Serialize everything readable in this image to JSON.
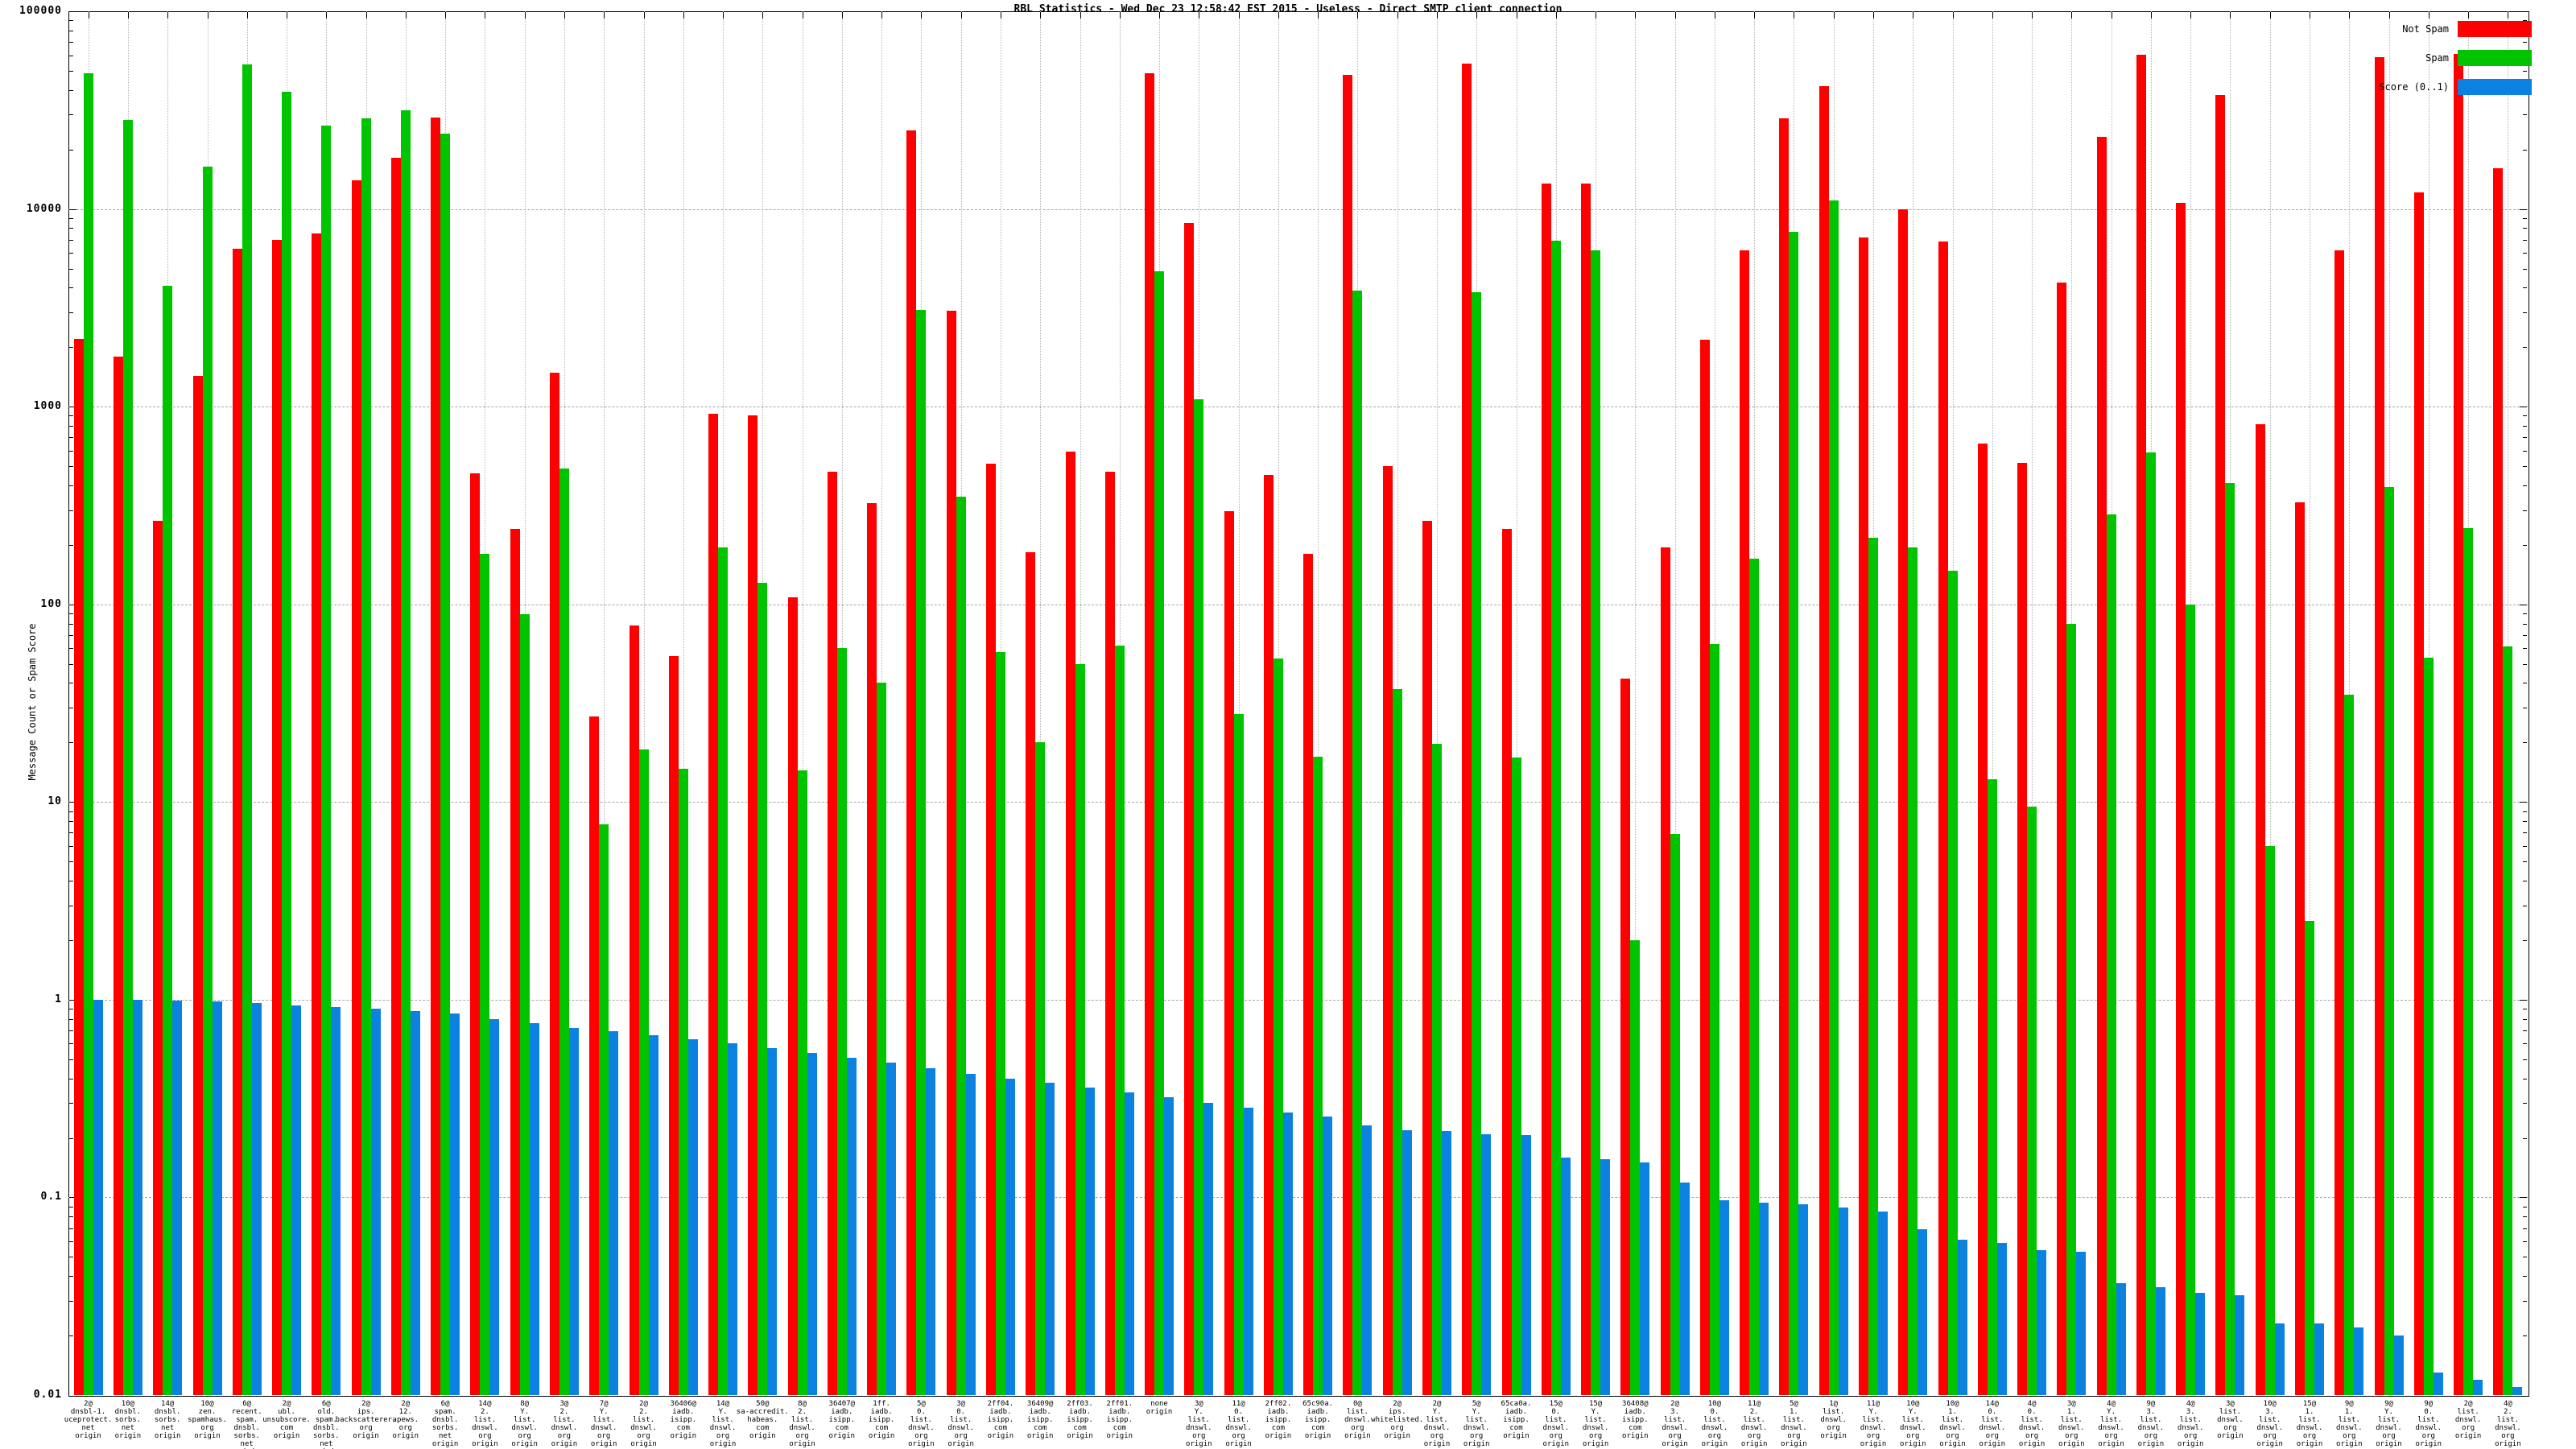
{
  "title": "RBL Statistics - Wed Dec 23 12:58:42 EST 2015 - Useless - Direct SMTP client connection",
  "y_axis": {
    "label": "Message Count or Spam Score",
    "tick_labels": [
      "100000",
      "10000",
      "1000",
      "100",
      "10",
      "1",
      "0.1",
      "0.01"
    ]
  },
  "legend": [
    {
      "label": "Not Spam",
      "color": "#ff0000"
    },
    {
      "label": "Spam",
      "color": "#00c400"
    },
    {
      "label": "Score (0..1)",
      "color": "#0c82e0"
    }
  ],
  "colors": {
    "not_spam": "#ff0000",
    "spam": "#00c400",
    "score": "#0c82e0",
    "grid_h": "#a6a6a6",
    "grid_v": "#b5b5b5"
  },
  "chart_data": {
    "type": "bar",
    "scale": "log",
    "ylim": [
      0.01,
      100000
    ],
    "ylabel": "Message Count or Spam Score",
    "grid": true,
    "legend_position": "top-right",
    "categories": [
      [
        "2@",
        "dnsbl-1.",
        "uceprotect.",
        "net",
        "origin"
      ],
      [
        "10@",
        "dnsbl.",
        "sorbs.",
        "net",
        "origin"
      ],
      [
        "14@",
        "dnsbl.",
        "sorbs.",
        "net",
        "origin"
      ],
      [
        "10@",
        "zen.",
        "spamhaus.",
        "org",
        "origin"
      ],
      [
        "6@",
        "recent.",
        "spam.",
        "dnsbl.",
        "sorbs.",
        "net",
        "origin"
      ],
      [
        "2@",
        "ubl.",
        "unsubscore.",
        "com",
        "origin"
      ],
      [
        "6@",
        "old.",
        "spam.",
        "dnsbl.",
        "sorbs.",
        "net",
        "origin"
      ],
      [
        "2@",
        "ips.",
        "backscatterer.",
        "org",
        "origin"
      ],
      [
        "2@",
        "12.",
        "apews.",
        "org",
        "origin"
      ],
      [
        "6@",
        "spam.",
        "dnsbl.",
        "sorbs.",
        "net",
        "origin"
      ],
      [
        "14@",
        "2.",
        "list.",
        "dnswl.",
        "org",
        "origin"
      ],
      [
        "8@",
        "Y.",
        "list.",
        "dnswl.",
        "org",
        "origin"
      ],
      [
        "3@",
        "2.",
        "list.",
        "dnswl.",
        "org",
        "origin"
      ],
      [
        "7@",
        "Y.",
        "list.",
        "dnswl.",
        "org",
        "origin"
      ],
      [
        "2@",
        "2.",
        "list.",
        "dnswl.",
        "org",
        "origin"
      ],
      [
        "36406@",
        "iadb.",
        "isipp.",
        "com",
        "origin"
      ],
      [
        "14@",
        "Y.",
        "list.",
        "dnswl.",
        "org",
        "origin"
      ],
      [
        "50@",
        "sa-accredit.",
        "habeas.",
        "com",
        "origin"
      ],
      [
        "8@",
        "2.",
        "list.",
        "dnswl.",
        "org",
        "origin"
      ],
      [
        "36407@",
        "iadb.",
        "isipp.",
        "com",
        "origin"
      ],
      [
        "1ff.",
        "iadb.",
        "isipp.",
        "com",
        "origin"
      ],
      [
        "5@",
        "0.",
        "list.",
        "dnswl.",
        "org",
        "origin"
      ],
      [
        "3@",
        "0.",
        "list.",
        "dnswl.",
        "org",
        "origin"
      ],
      [
        "2ff04.",
        "iadb.",
        "isipp.",
        "com",
        "origin"
      ],
      [
        "36409@",
        "iadb.",
        "isipp.",
        "com",
        "origin"
      ],
      [
        "2ff03.",
        "iadb.",
        "isipp.",
        "com",
        "origin"
      ],
      [
        "2ff01.",
        "iadb.",
        "isipp.",
        "com",
        "origin"
      ],
      [
        "none",
        "origin"
      ],
      [
        "3@",
        "Y.",
        "list.",
        "dnswl.",
        "org",
        "origin"
      ],
      [
        "11@",
        "0.",
        "list.",
        "dnswl.",
        "org",
        "origin"
      ],
      [
        "2ff02.",
        "iadb.",
        "isipp.",
        "com",
        "origin"
      ],
      [
        "65c90a.",
        "iadb.",
        "isipp.",
        "com",
        "origin"
      ],
      [
        "0@",
        "list.",
        "dnswl.",
        "org",
        "origin"
      ],
      [
        "2@",
        "ips.",
        "whitelisted.",
        "org",
        "origin"
      ],
      [
        "2@",
        "Y.",
        "list.",
        "dnswl.",
        "org",
        "origin"
      ],
      [
        "5@",
        "Y.",
        "list.",
        "dnswl.",
        "org",
        "origin"
      ],
      [
        "65ca0a.",
        "iadb.",
        "isipp.",
        "com",
        "origin"
      ],
      [
        "15@",
        "0.",
        "list.",
        "dnswl.",
        "org",
        "origin"
      ],
      [
        "15@",
        "Y.",
        "list.",
        "dnswl.",
        "org",
        "origin"
      ],
      [
        "36408@",
        "iadb.",
        "isipp.",
        "com",
        "origin"
      ],
      [
        "2@",
        "3.",
        "list.",
        "dnswl.",
        "org",
        "origin"
      ],
      [
        "10@",
        "0.",
        "list.",
        "dnswl.",
        "org",
        "origin"
      ],
      [
        "11@",
        "2.",
        "list.",
        "dnswl.",
        "org",
        "origin"
      ],
      [
        "5@",
        "1.",
        "list.",
        "dnswl.",
        "org",
        "origin"
      ],
      [
        "1@",
        "list.",
        "dnswl.",
        "org",
        "origin"
      ],
      [
        "11@",
        "Y.",
        "list.",
        "dnswl.",
        "org",
        "origin"
      ],
      [
        "10@",
        "Y.",
        "list.",
        "dnswl.",
        "org",
        "origin"
      ],
      [
        "10@",
        "1.",
        "list.",
        "dnswl.",
        "org",
        "origin"
      ],
      [
        "14@",
        "0.",
        "list.",
        "dnswl.",
        "org",
        "origin"
      ],
      [
        "4@",
        "0.",
        "list.",
        "dnswl.",
        "org",
        "origin"
      ],
      [
        "3@",
        "1.",
        "list.",
        "dnswl.",
        "org",
        "origin"
      ],
      [
        "4@",
        "Y.",
        "list.",
        "dnswl.",
        "org",
        "origin"
      ],
      [
        "9@",
        "3.",
        "list.",
        "dnswl.",
        "org",
        "origin"
      ],
      [
        "4@",
        "3.",
        "list.",
        "dnswl.",
        "org",
        "origin"
      ],
      [
        "3@",
        "list.",
        "dnswl.",
        "org",
        "origin"
      ],
      [
        "10@",
        "3.",
        "list.",
        "dnswl.",
        "org",
        "origin"
      ],
      [
        "15@",
        "1.",
        "list.",
        "dnswl.",
        "org",
        "origin"
      ],
      [
        "9@",
        "1.",
        "list.",
        "dnswl.",
        "org",
        "origin"
      ],
      [
        "9@",
        "Y.",
        "list.",
        "dnswl.",
        "org",
        "origin"
      ],
      [
        "9@",
        "0.",
        "list.",
        "dnswl.",
        "org",
        "origin"
      ],
      [
        "2@",
        "list.",
        "dnswl.",
        "org",
        "origin"
      ],
      [
        "4@",
        "2.",
        "list.",
        "dnswl.",
        "org",
        "origin"
      ]
    ],
    "series": [
      {
        "name": "Not Spam",
        "color": "#ff0000",
        "values": [
          2200,
          1800,
          265,
          1430,
          6300,
          7000,
          7550,
          14000,
          18100,
          29000,
          460,
          240,
          1480,
          27,
          78,
          55,
          925,
          900,
          109,
          467,
          325,
          25000,
          3050,
          513,
          183,
          590,
          470,
          48400,
          8530,
          297,
          450,
          180,
          47600,
          501,
          264,
          54300,
          242,
          13400,
          13500,
          42,
          195,
          2180,
          6200,
          28700,
          42000,
          7190,
          10000,
          6870,
          650,
          520,
          4230,
          23200,
          60200,
          10700,
          37700,
          815,
          327,
          6200,
          58800,
          12100,
          61100,
          16000
        ]
      },
      {
        "name": "Spam",
        "color": "#00c400",
        "values": [
          48700,
          28300,
          4080,
          16450,
          54000,
          39200,
          26450,
          28700,
          31600,
          24000,
          180,
          89,
          485,
          7.7,
          18.5,
          14.8,
          194,
          128,
          14.5,
          60,
          40,
          3090,
          352,
          57.5,
          20,
          50,
          62,
          4830,
          1090,
          27.9,
          53,
          16.9,
          3850,
          37.2,
          19.7,
          3790,
          16.8,
          6900,
          6200,
          2.0,
          6.9,
          62.8,
          170,
          7640,
          11040,
          218,
          194,
          148,
          13.1,
          9.5,
          79.4,
          284,
          586,
          100,
          413,
          6.0,
          2.5,
          35,
          394,
          53.7,
          243,
          61
        ]
      },
      {
        "name": "Score (0..1)",
        "color": "#0c82e0",
        "values": [
          1.0,
          1.0,
          0.99,
          0.98,
          0.96,
          0.94,
          0.92,
          0.9,
          0.88,
          0.85,
          0.8,
          0.76,
          0.72,
          0.69,
          0.66,
          0.63,
          0.6,
          0.57,
          0.54,
          0.51,
          0.48,
          0.45,
          0.42,
          0.4,
          0.38,
          0.36,
          0.34,
          0.32,
          0.3,
          0.285,
          0.27,
          0.256,
          0.232,
          0.218,
          0.217,
          0.208,
          0.207,
          0.159,
          0.156,
          0.15,
          0.119,
          0.097,
          0.094,
          0.092,
          0.089,
          0.085,
          0.069,
          0.061,
          0.059,
          0.054,
          0.053,
          0.037,
          0.035,
          0.033,
          0.032,
          0.023,
          0.023,
          0.022,
          0.02,
          0.013,
          0.012,
          0.011
        ]
      }
    ]
  }
}
